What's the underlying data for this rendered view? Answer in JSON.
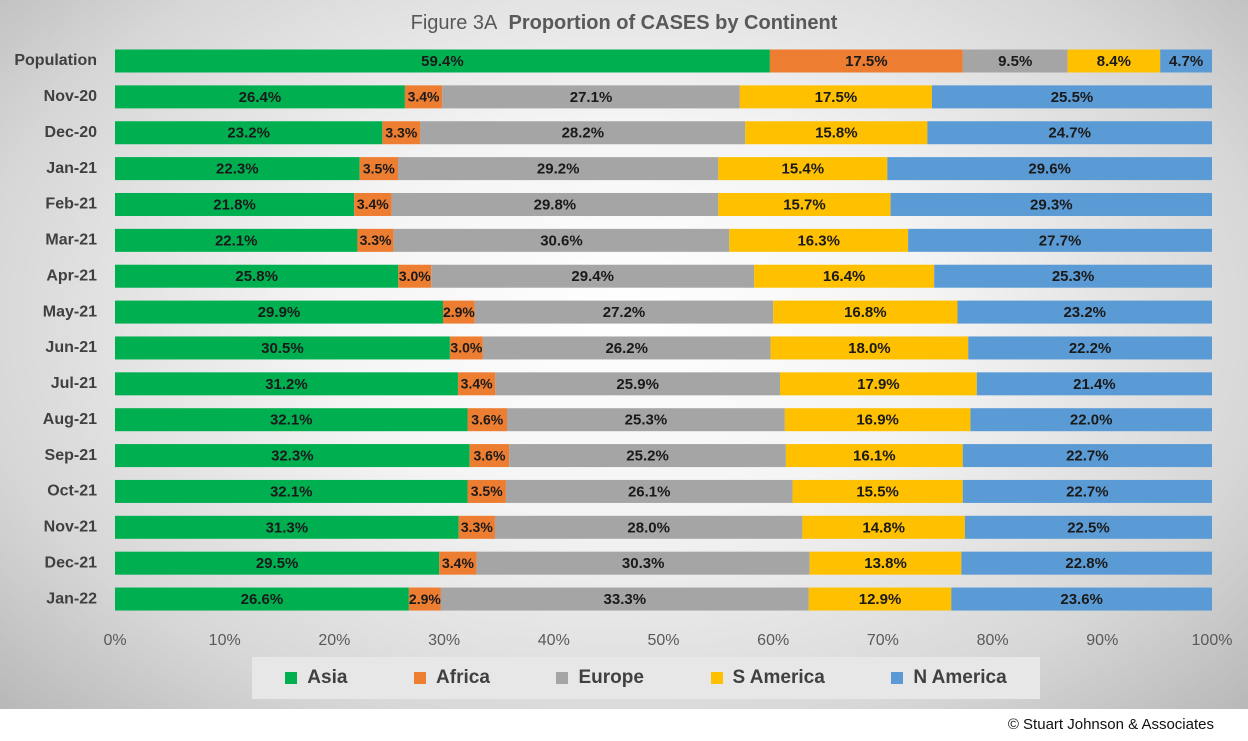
{
  "title": {
    "prefix": "Figure  3A",
    "main": "Proportion of CASES by Continent"
  },
  "copyright": "© Stuart Johnson & Associates",
  "chart_data": {
    "type": "bar",
    "orientation": "horizontal",
    "stacked": true,
    "percent_stacked": true,
    "categories": [
      "Population",
      "Nov-20",
      "Dec-20",
      "Jan-21",
      "Feb-21",
      "Mar-21",
      "Apr-21",
      "May-21",
      "Jun-21",
      "Jul-21",
      "Aug-21",
      "Sep-21",
      "Oct-21",
      "Nov-21",
      "Dec-21",
      "Jan-22"
    ],
    "series": [
      {
        "name": "Asia",
        "color": "#00b050",
        "values": [
          59.4,
          26.4,
          23.2,
          22.3,
          21.8,
          22.1,
          25.8,
          29.9,
          30.5,
          31.2,
          32.1,
          32.3,
          32.1,
          31.3,
          29.5,
          26.6
        ]
      },
      {
        "name": "Africa",
        "color": "#ed7d31",
        "values": [
          17.5,
          3.4,
          3.3,
          3.5,
          3.4,
          3.3,
          3.0,
          2.9,
          3.0,
          3.4,
          3.6,
          3.6,
          3.5,
          3.3,
          3.4,
          2.9
        ]
      },
      {
        "name": "Europe",
        "color": "#a5a5a5",
        "values": [
          9.5,
          27.1,
          28.2,
          29.2,
          29.8,
          30.6,
          29.4,
          27.2,
          26.2,
          25.9,
          25.3,
          25.2,
          26.1,
          28.0,
          30.3,
          33.3
        ]
      },
      {
        "name": "S America",
        "color": "#ffc000",
        "values": [
          8.4,
          17.5,
          15.8,
          15.4,
          15.7,
          16.3,
          16.4,
          16.8,
          18.0,
          17.9,
          16.9,
          16.1,
          15.5,
          14.8,
          13.8,
          12.9
        ]
      },
      {
        "name": "N America",
        "color": "#5b9bd5",
        "values": [
          4.7,
          25.5,
          24.7,
          29.6,
          29.3,
          27.7,
          25.3,
          23.2,
          22.2,
          21.4,
          22.0,
          22.7,
          22.7,
          22.5,
          22.8,
          23.6
        ]
      }
    ],
    "xticks": [
      "0%",
      "10%",
      "20%",
      "30%",
      "40%",
      "50%",
      "60%",
      "70%",
      "80%",
      "90%",
      "100%"
    ],
    "xlim": [
      0,
      100
    ],
    "legend_position": "bottom",
    "grid": false
  }
}
